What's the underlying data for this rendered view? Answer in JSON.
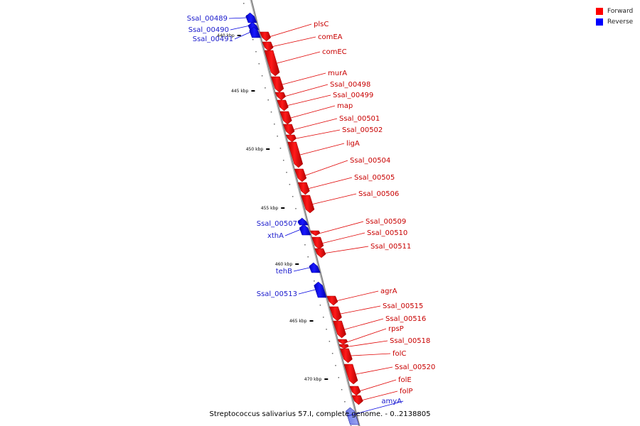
{
  "legend": {
    "forward_label": "Forward",
    "reverse_label": "Reverse",
    "forward_color": "#ff0000",
    "reverse_color": "#0000ff"
  },
  "caption": "Streptococcus salivarius 57.I, complete genome. - 0..2138805",
  "ruler_labels": [
    "440 kbp",
    "445 kbp",
    "450 kbp",
    "455 kbp",
    "460 kbp",
    "465 kbp",
    "470 kbp"
  ],
  "genes": [
    {
      "name": "Ssal_00489",
      "strand": "reverse"
    },
    {
      "name": "Ssal_00490",
      "strand": "reverse"
    },
    {
      "name": "Ssal_00491",
      "strand": "reverse"
    },
    {
      "name": "plsC",
      "strand": "forward"
    },
    {
      "name": "comEA",
      "strand": "forward"
    },
    {
      "name": "comEC",
      "strand": "forward"
    },
    {
      "name": "murA",
      "strand": "forward"
    },
    {
      "name": "Ssal_00498",
      "strand": "forward"
    },
    {
      "name": "Ssal_00499",
      "strand": "forward"
    },
    {
      "name": "map",
      "strand": "forward"
    },
    {
      "name": "Ssal_00501",
      "strand": "forward"
    },
    {
      "name": "Ssal_00502",
      "strand": "forward"
    },
    {
      "name": "ligA",
      "strand": "forward"
    },
    {
      "name": "Ssal_00504",
      "strand": "forward"
    },
    {
      "name": "Ssal_00505",
      "strand": "forward"
    },
    {
      "name": "Ssal_00506",
      "strand": "forward"
    },
    {
      "name": "Ssal_00507",
      "strand": "reverse"
    },
    {
      "name": "xthA",
      "strand": "reverse"
    },
    {
      "name": "Ssal_00509",
      "strand": "forward"
    },
    {
      "name": "Ssal_00510",
      "strand": "forward"
    },
    {
      "name": "Ssal_00511",
      "strand": "forward"
    },
    {
      "name": "tehB",
      "strand": "reverse"
    },
    {
      "name": "Ssal_00513",
      "strand": "reverse"
    },
    {
      "name": "agrA",
      "strand": "forward"
    },
    {
      "name": "Ssal_00515",
      "strand": "forward"
    },
    {
      "name": "Ssal_00516",
      "strand": "forward"
    },
    {
      "name": "rpsP",
      "strand": "forward"
    },
    {
      "name": "Ssal_00518",
      "strand": "forward"
    },
    {
      "name": "folC",
      "strand": "forward"
    },
    {
      "name": "Ssal_00520",
      "strand": "forward"
    },
    {
      "name": "folE",
      "strand": "forward"
    },
    {
      "name": "folP",
      "strand": "forward"
    },
    {
      "name": "amyA",
      "strand": "reverse"
    }
  ]
}
